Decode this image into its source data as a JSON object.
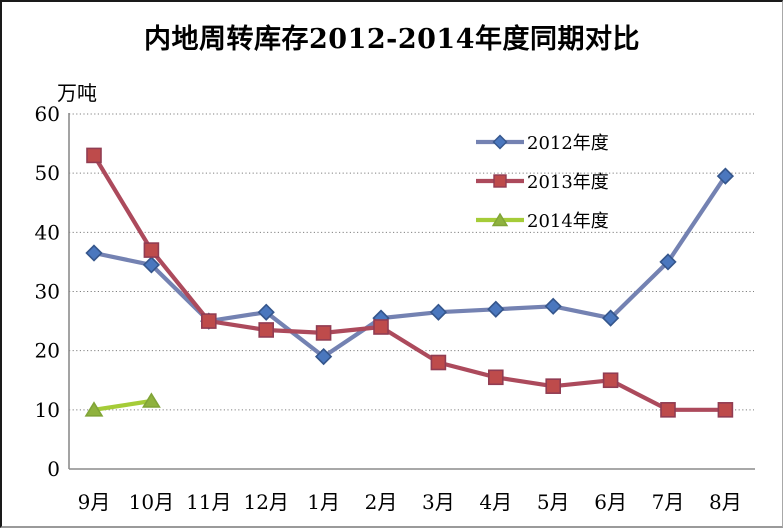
{
  "chart_data": {
    "type": "line",
    "title": "内地周转库存2012-2014年度同期对比",
    "y_unit_label": "万吨",
    "categories": [
      "9月",
      "10月",
      "11月",
      "12月",
      "1月",
      "2月",
      "3月",
      "4月",
      "5月",
      "6月",
      "7月",
      "8月"
    ],
    "yticks": [
      0,
      10,
      20,
      30,
      40,
      50,
      60
    ],
    "ylim": [
      0,
      60
    ],
    "grid": "horizontal-dotted",
    "legend_position": "inside-top-right",
    "axis_color": "#8c8c8c",
    "gridline_color": "#808080",
    "text_color": "#000000",
    "series": [
      {
        "name": "2012年度",
        "marker": "diamond",
        "line_color": "#7482B2",
        "marker_color": "#4A77BE",
        "marker_border": "#35568C",
        "values": [
          36.5,
          34.5,
          25,
          26.5,
          19,
          25.5,
          26.5,
          27,
          27.5,
          25.5,
          35,
          49.5
        ]
      },
      {
        "name": "2013年度",
        "marker": "square",
        "line_color": "#AC4A5C",
        "marker_color": "#BE4B4B",
        "marker_border": "#913C52",
        "values": [
          53,
          37,
          25,
          23.5,
          23,
          24,
          18,
          15.5,
          14,
          15,
          10,
          10
        ]
      },
      {
        "name": "2014年度",
        "marker": "triangle",
        "line_color": "#A5CC38",
        "marker_color": "#8FB23E",
        "marker_border": "#80A437",
        "values": [
          10,
          11.5,
          null,
          null,
          null,
          null,
          null,
          null,
          null,
          null,
          null,
          null
        ]
      }
    ]
  }
}
